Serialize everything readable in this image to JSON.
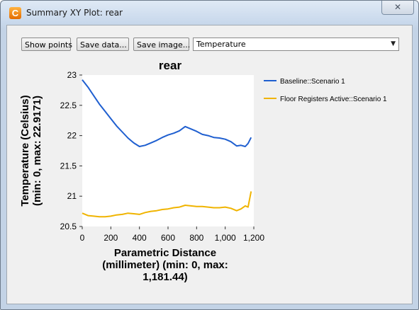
{
  "window": {
    "title": "Summary XY Plot: rear",
    "close_glyph": "✕",
    "app_icon_letter": "C"
  },
  "toolbar": {
    "show_points_label": "Show points",
    "save_data_label": "Save data...",
    "save_image_label": "Save image...",
    "variable_selected": "Temperature"
  },
  "colors": {
    "baseline": "#1f5fd0",
    "floor": "#f0b400",
    "accent": "#e36b00"
  },
  "chart_data": {
    "type": "line",
    "title": "rear",
    "ylabel_lines": [
      "Temperature (Celsius)",
      "(min: 0, max: 22.9171)"
    ],
    "xlabel_lines": [
      "Parametric Distance",
      "(millimeter) (min: 0, max:",
      "1,181.44)"
    ],
    "xlim": [
      0,
      1200
    ],
    "ylim": [
      20.5,
      23
    ],
    "xticks": [
      0,
      200,
      400,
      600,
      800,
      1000,
      1200
    ],
    "xtick_labels": [
      "0",
      "200",
      "400",
      "600",
      "800",
      "1,000",
      "1,200"
    ],
    "yticks": [
      20.5,
      21,
      21.5,
      22,
      22.5,
      23
    ],
    "ytick_labels": [
      "20.5",
      "21",
      "21.5",
      "22",
      "22.5",
      "23"
    ],
    "legend_position": "right",
    "series": [
      {
        "name": "Baseline::Scenario 1",
        "x": [
          0,
          40,
          80,
          120,
          160,
          200,
          240,
          280,
          320,
          360,
          400,
          440,
          480,
          520,
          560,
          600,
          640,
          680,
          720,
          760,
          800,
          840,
          880,
          920,
          960,
          1000,
          1040,
          1080,
          1110,
          1140,
          1160,
          1181
        ],
        "y": [
          22.92,
          22.8,
          22.66,
          22.52,
          22.4,
          22.28,
          22.16,
          22.06,
          21.96,
          21.88,
          21.82,
          21.84,
          21.88,
          21.92,
          21.97,
          22.01,
          22.04,
          22.08,
          22.15,
          22.11,
          22.07,
          22.02,
          22.0,
          21.97,
          21.96,
          21.94,
          21.9,
          21.83,
          21.84,
          21.82,
          21.87,
          21.97
        ]
      },
      {
        "name": "Floor Registers Active::Scenario 1",
        "x": [
          0,
          40,
          80,
          120,
          160,
          200,
          240,
          280,
          320,
          360,
          400,
          440,
          480,
          520,
          560,
          600,
          640,
          680,
          720,
          760,
          800,
          840,
          880,
          920,
          960,
          1000,
          1040,
          1080,
          1110,
          1140,
          1160,
          1181
        ],
        "y": [
          20.72,
          20.68,
          20.67,
          20.66,
          20.66,
          20.67,
          20.69,
          20.7,
          20.72,
          20.71,
          20.7,
          20.73,
          20.75,
          20.76,
          20.78,
          20.79,
          20.81,
          20.82,
          20.85,
          20.84,
          20.83,
          20.83,
          20.82,
          20.81,
          20.81,
          20.82,
          20.8,
          20.76,
          20.79,
          20.84,
          20.82,
          21.08
        ]
      }
    ]
  }
}
